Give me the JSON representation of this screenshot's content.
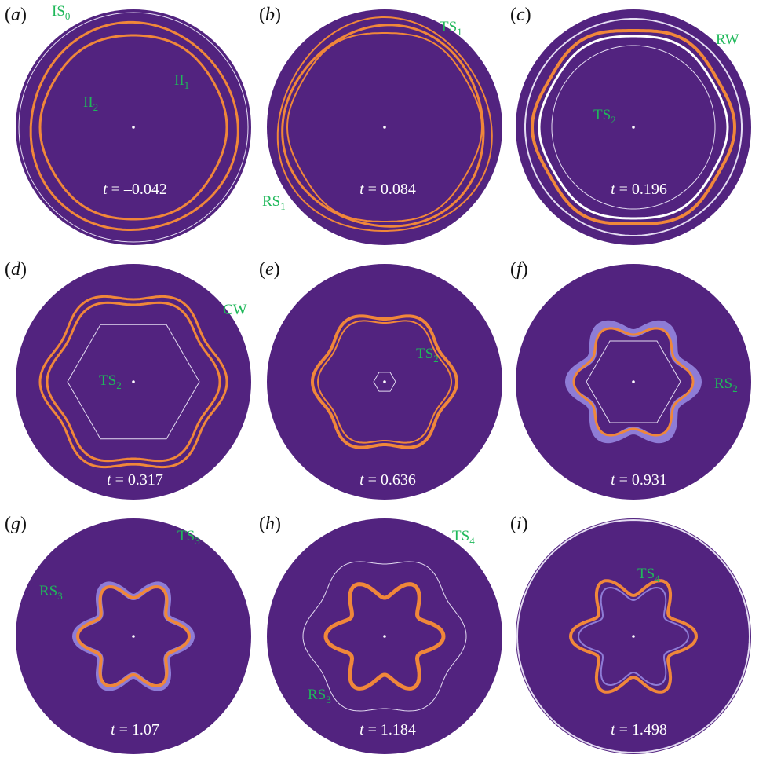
{
  "colors": {
    "background": "#52237f",
    "annotation": "#1fb85a",
    "front": "#f0873a",
    "thin": "#e4dcf2",
    "vortex": "#8e7cd6"
  },
  "panels": [
    {
      "label": "a",
      "time": "t = –0.042",
      "t_var": "t",
      "t_rest": " = –0.042",
      "annotations": [
        {
          "base": "IS",
          "sub": "0"
        },
        {
          "base": "II",
          "sub": "2"
        },
        {
          "base": "II",
          "sub": "1"
        }
      ]
    },
    {
      "label": "b",
      "time": "t = 0.084",
      "t_var": "t",
      "t_rest": " = 0.084",
      "annotations": [
        {
          "base": "TS",
          "sub": "1"
        },
        {
          "base": "RS",
          "sub": "1"
        }
      ]
    },
    {
      "label": "c",
      "time": "t = 0.196",
      "t_var": "t",
      "t_rest": " = 0.196",
      "annotations": [
        {
          "base": "RW",
          "sub": ""
        },
        {
          "base": "TS",
          "sub": "2"
        }
      ]
    },
    {
      "label": "d",
      "time": "t = 0.317",
      "t_var": "t",
      "t_rest": " = 0.317",
      "annotations": [
        {
          "base": "CW",
          "sub": ""
        },
        {
          "base": "TS",
          "sub": "2"
        }
      ]
    },
    {
      "label": "e",
      "time": "t = 0.636",
      "t_var": "t",
      "t_rest": " = 0.636",
      "annotations": [
        {
          "base": "TS",
          "sub": "2"
        }
      ]
    },
    {
      "label": "f",
      "time": "t = 0.931",
      "t_var": "t",
      "t_rest": " = 0.931",
      "annotations": [
        {
          "base": "RS",
          "sub": "2"
        }
      ]
    },
    {
      "label": "g",
      "time": "t = 1.07",
      "t_var": "t",
      "t_rest": " = 1.07",
      "annotations": [
        {
          "base": "TS",
          "sub": "3"
        },
        {
          "base": "RS",
          "sub": "3"
        }
      ]
    },
    {
      "label": "h",
      "time": "t = 1.184",
      "t_var": "t",
      "t_rest": " = 1.184",
      "annotations": [
        {
          "base": "TS",
          "sub": "4"
        },
        {
          "base": "RS",
          "sub": "3"
        }
      ]
    },
    {
      "label": "i",
      "time": "t = 1.498",
      "t_var": "t",
      "t_rest": " = 1.498",
      "annotations": [
        {
          "base": "TS",
          "sub": "4"
        }
      ]
    }
  ]
}
